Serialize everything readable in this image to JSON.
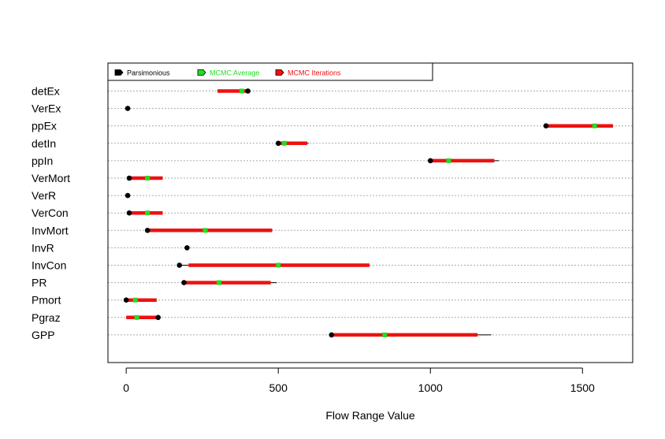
{
  "chart_data": {
    "type": "range-dotplot",
    "xlabel": "Flow Range Value",
    "xlim": [
      -60,
      1665
    ],
    "xticks": [
      0,
      500,
      1000,
      1500
    ],
    "xtick_labels": [
      "0",
      "500",
      "1000",
      "1500"
    ],
    "grid": "horizontal dotted",
    "legend_position": "top-left",
    "legend": [
      {
        "label": "Parsimonious",
        "color": "#000000",
        "text_color": "#000000"
      },
      {
        "label": "MCMC Average",
        "color": "#22dd22",
        "text_color": "#22dd22"
      },
      {
        "label": "MCMC Iterations",
        "color": "#ee1111",
        "text_color": "#ee1111"
      }
    ],
    "colors": {
      "parsimonious": "#000000",
      "mcmc_average": "#22dd22",
      "mcmc_range": "#ee1111",
      "thin_range": "#000000"
    },
    "categories": [
      "detEx",
      "VerEx",
      "ppEx",
      "detIn",
      "ppIn",
      "VerMort",
      "VerR",
      "VerCon",
      "InvMort",
      "InvR",
      "InvCon",
      "PR",
      "Pmort",
      "Pgraz",
      "GPP"
    ],
    "rows": [
      {
        "name": "detEx",
        "parsimonious": 400,
        "mcmc_average": 380,
        "range": [
          300,
          395
        ],
        "thin": [
          300,
          395
        ]
      },
      {
        "name": "VerEx",
        "parsimonious": 5,
        "mcmc_average": null,
        "range": null,
        "thin": null
      },
      {
        "name": "ppEx",
        "parsimonious": 1380,
        "mcmc_average": 1540,
        "range": [
          1385,
          1600
        ],
        "thin": [
          1380,
          1600
        ]
      },
      {
        "name": "detIn",
        "parsimonious": 500,
        "mcmc_average": 520,
        "range": [
          505,
          595
        ],
        "thin": [
          500,
          600
        ]
      },
      {
        "name": "ppIn",
        "parsimonious": 1000,
        "mcmc_average": 1060,
        "range": [
          1005,
          1210
        ],
        "thin": [
          1000,
          1225
        ]
      },
      {
        "name": "VerMort",
        "parsimonious": 10,
        "mcmc_average": 70,
        "range": [
          10,
          120
        ],
        "thin": [
          10,
          120
        ]
      },
      {
        "name": "VerR",
        "parsimonious": 5,
        "mcmc_average": null,
        "range": null,
        "thin": null
      },
      {
        "name": "VerCon",
        "parsimonious": 10,
        "mcmc_average": 70,
        "range": [
          10,
          120
        ],
        "thin": [
          10,
          120
        ]
      },
      {
        "name": "InvMort",
        "parsimonious": 70,
        "mcmc_average": 260,
        "range": [
          75,
          480
        ],
        "thin": [
          70,
          480
        ]
      },
      {
        "name": "InvR",
        "parsimonious": 200,
        "mcmc_average": null,
        "range": null,
        "thin": null
      },
      {
        "name": "InvCon",
        "parsimonious": 175,
        "mcmc_average": 500,
        "range": [
          205,
          800
        ],
        "thin": [
          175,
          800
        ]
      },
      {
        "name": "PR",
        "parsimonious": 190,
        "mcmc_average": 305,
        "range": [
          195,
          475
        ],
        "thin": [
          190,
          495
        ]
      },
      {
        "name": "Pmort",
        "parsimonious": 0,
        "mcmc_average": 30,
        "range": [
          5,
          100
        ],
        "thin": [
          0,
          100
        ]
      },
      {
        "name": "Pgraz",
        "parsimonious": 105,
        "mcmc_average": 35,
        "range": [
          0,
          100
        ],
        "thin": [
          0,
          105
        ]
      },
      {
        "name": "GPP",
        "parsimonious": 675,
        "mcmc_average": 850,
        "range": [
          680,
          1155
        ],
        "thin": [
          675,
          1200
        ]
      }
    ]
  }
}
